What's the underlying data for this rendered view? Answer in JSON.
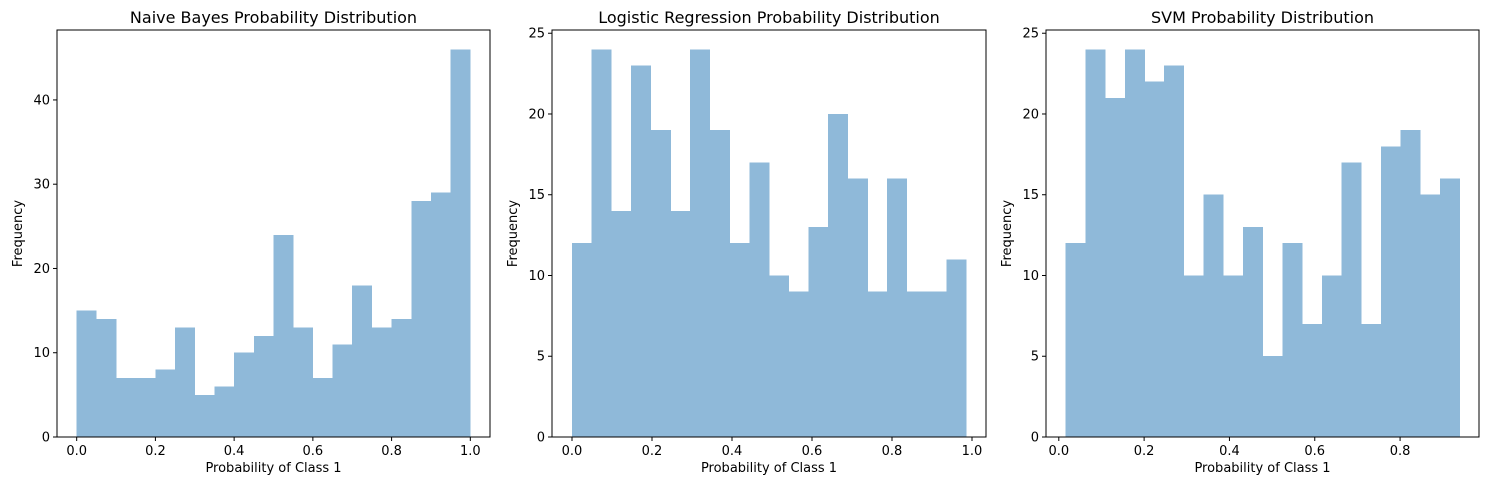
{
  "chart_data": [
    {
      "type": "bar",
      "title": "Naive Bayes Probability Distribution",
      "xlabel": "Probability of Class 1",
      "ylabel": "Frequency",
      "xlim": [
        -0.05,
        1.05
      ],
      "ylim": [
        0,
        48.3
      ],
      "xticks": [
        0.0,
        0.2,
        0.4,
        0.6,
        0.8,
        1.0
      ],
      "xtick_labels": [
        "0.0",
        "0.2",
        "0.4",
        "0.6",
        "0.8",
        "1.0"
      ],
      "yticks": [
        0,
        10,
        20,
        30,
        40
      ],
      "ytick_labels": [
        "0",
        "10",
        "20",
        "30",
        "40"
      ],
      "bin_range": [
        0.0,
        1.0
      ],
      "values": [
        15,
        14,
        7,
        7,
        8,
        13,
        5,
        6,
        10,
        12,
        24,
        13,
        7,
        11,
        18,
        13,
        14,
        28,
        29,
        46
      ]
    },
    {
      "type": "bar",
      "title": "Logistic Regression Probability Distribution",
      "xlabel": "Probability of Class 1",
      "ylabel": "Frequency",
      "xlim": [
        -0.05,
        1.035
      ],
      "ylim": [
        0,
        25.2
      ],
      "xticks": [
        0.0,
        0.2,
        0.4,
        0.6,
        0.8,
        1.0
      ],
      "xtick_labels": [
        "0.0",
        "0.2",
        "0.4",
        "0.6",
        "0.8",
        "1.0"
      ],
      "yticks": [
        0,
        5,
        10,
        15,
        20,
        25
      ],
      "ytick_labels": [
        "0",
        "5",
        "10",
        "15",
        "20",
        "25"
      ],
      "bin_range": [
        0.0,
        0.985
      ],
      "values": [
        12,
        24,
        14,
        23,
        19,
        14,
        24,
        19,
        12,
        17,
        10,
        9,
        13,
        20,
        16,
        9,
        16,
        9,
        9,
        11
      ]
    },
    {
      "type": "bar",
      "title": "SVM Probability Distribution",
      "xlabel": "Probability of Class 1",
      "ylabel": "Frequency",
      "xlim": [
        -0.03,
        0.985
      ],
      "ylim": [
        0,
        25.2
      ],
      "xticks": [
        0.0,
        0.2,
        0.4,
        0.6,
        0.8
      ],
      "xtick_labels": [
        "0.0",
        "0.2",
        "0.4",
        "0.6",
        "0.8"
      ],
      "yticks": [
        0,
        5,
        10,
        15,
        20,
        25
      ],
      "ytick_labels": [
        "0",
        "5",
        "10",
        "15",
        "20",
        "25"
      ],
      "bin_range": [
        0.016,
        0.94
      ],
      "values": [
        12,
        24,
        21,
        24,
        22,
        23,
        10,
        15,
        10,
        13,
        5,
        12,
        7,
        10,
        17,
        7,
        18,
        19,
        15,
        16
      ]
    }
  ],
  "colors": {
    "bar": "#8fb9d9",
    "axis": "#000000",
    "background": "#ffffff"
  }
}
